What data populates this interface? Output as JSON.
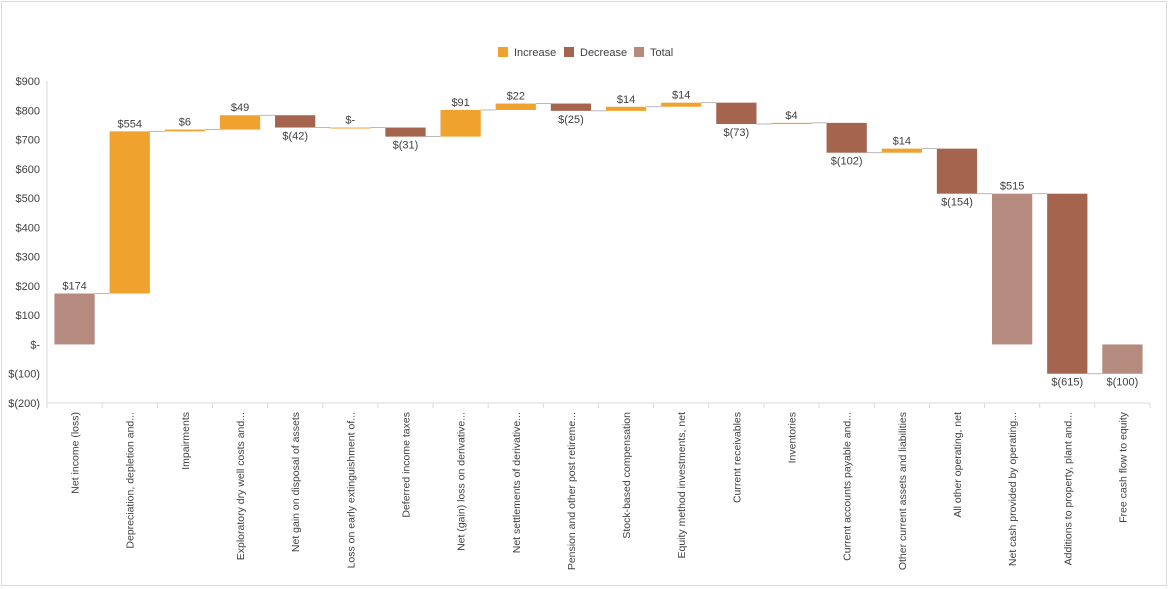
{
  "chart_data": {
    "type": "waterfall",
    "title": "",
    "xlabel": "",
    "ylabel": "",
    "ylim": [
      -200,
      900
    ],
    "yticks": [
      -200,
      -100,
      0,
      100,
      200,
      300,
      400,
      500,
      600,
      700,
      800,
      900
    ],
    "ytick_labels": [
      "$(200)",
      "$(100)",
      "$-",
      "$100",
      "$200",
      "$300",
      "$400",
      "$500",
      "$600",
      "$700",
      "$800",
      "$900"
    ],
    "legend": {
      "position": "top-center",
      "entries": [
        {
          "name": "Increase",
          "color": "#F0A22E"
        },
        {
          "name": "Decrease",
          "color": "#A5644E"
        },
        {
          "name": "Total",
          "color": "#B58B80"
        }
      ]
    },
    "grid": false,
    "categories": [
      "Net income (loss)",
      "Depreciation, depletion and...",
      "Impairments",
      "Exploratory dry well costs and...",
      "Net gain on disposal of assets",
      "Loss on early extinguishment of...",
      "Deferred income taxes",
      "Net (gain) loss on derivative...",
      "Net settlements of derivative...",
      "Pension and other post retireme...",
      "Stock-based compensation",
      "Equity method investments, net",
      "Current receivables",
      "Inventories",
      "Current accounts payable and...",
      "Other current assets and liabilities",
      "All other operating, net",
      "Net cash provided by operating...",
      "Additions to property, plant and...",
      "Free cash flow to equity"
    ],
    "values": [
      174,
      554,
      6,
      49,
      -42,
      0,
      -31,
      91,
      22,
      -25,
      14,
      14,
      -73,
      4,
      -102,
      14,
      -154,
      515,
      -615,
      -100
    ],
    "kinds": [
      "total",
      "increase",
      "increase",
      "increase",
      "decrease",
      "increase",
      "decrease",
      "increase",
      "increase",
      "decrease",
      "increase",
      "increase",
      "decrease",
      "increase",
      "decrease",
      "increase",
      "decrease",
      "total",
      "decrease",
      "total"
    ],
    "data_labels": [
      "$174",
      "$554",
      "$6",
      "$49",
      "$(42)",
      "$-",
      "$(31)",
      "$91",
      "$22",
      "$(25)",
      "$14",
      "$14",
      "$(73)",
      "$4",
      "$(102)",
      "$14",
      "$(154)",
      "$515",
      "$(615)",
      "$(100)"
    ]
  }
}
